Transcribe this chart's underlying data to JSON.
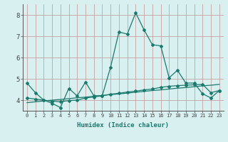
{
  "xlabel": "Humidex (Indice chaleur)",
  "x_values": [
    0,
    1,
    2,
    3,
    4,
    5,
    6,
    7,
    8,
    9,
    10,
    11,
    12,
    13,
    14,
    15,
    16,
    17,
    18,
    19,
    20,
    21,
    22,
    23
  ],
  "line1_y": [
    4.8,
    4.35,
    4.0,
    3.85,
    3.65,
    4.55,
    4.2,
    4.85,
    4.2,
    4.2,
    5.55,
    7.2,
    7.1,
    8.1,
    7.3,
    6.6,
    6.55,
    5.05,
    5.4,
    4.8,
    4.8,
    4.3,
    4.1,
    4.45
  ],
  "line2_y": [
    4.1,
    4.05,
    4.0,
    3.95,
    3.92,
    3.98,
    4.0,
    4.1,
    4.15,
    4.2,
    4.28,
    4.32,
    4.38,
    4.42,
    4.48,
    4.52,
    4.6,
    4.65,
    4.68,
    4.7,
    4.72,
    4.74,
    4.35,
    4.45
  ],
  "line3_y": [
    3.88,
    3.92,
    3.96,
    4.0,
    4.03,
    4.07,
    4.11,
    4.14,
    4.18,
    4.22,
    4.26,
    4.29,
    4.33,
    4.37,
    4.41,
    4.45,
    4.48,
    4.52,
    4.56,
    4.59,
    4.63,
    4.67,
    4.7,
    4.74
  ],
  "line_color": "#1a7a6e",
  "bg_color": "#d8f0f0",
  "grid_color": "#c8a0a0",
  "ylim": [
    3.5,
    8.5
  ],
  "yticks": [
    4,
    5,
    6,
    7,
    8
  ],
  "xlim": [
    -0.5,
    23.5
  ]
}
